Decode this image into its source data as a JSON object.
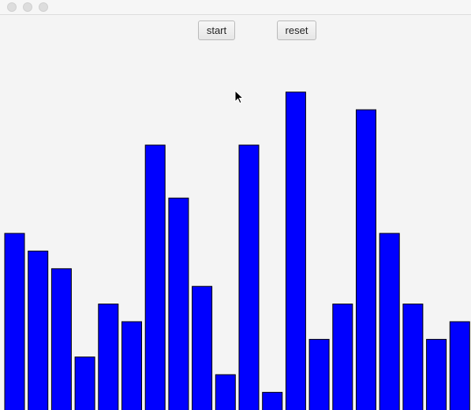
{
  "toolbar": {
    "start_label": "start",
    "reset_label": "reset"
  },
  "colors": {
    "bar_fill": "#0000ff",
    "bar_stroke": "#000000"
  },
  "chart_data": {
    "type": "bar",
    "title": "",
    "xlabel": "",
    "ylabel": "",
    "grid": false,
    "values": [
      10,
      9,
      8,
      3,
      6,
      5,
      15,
      12,
      7,
      2,
      15,
      1,
      18,
      4,
      6,
      17,
      10,
      6,
      4,
      5
    ]
  }
}
